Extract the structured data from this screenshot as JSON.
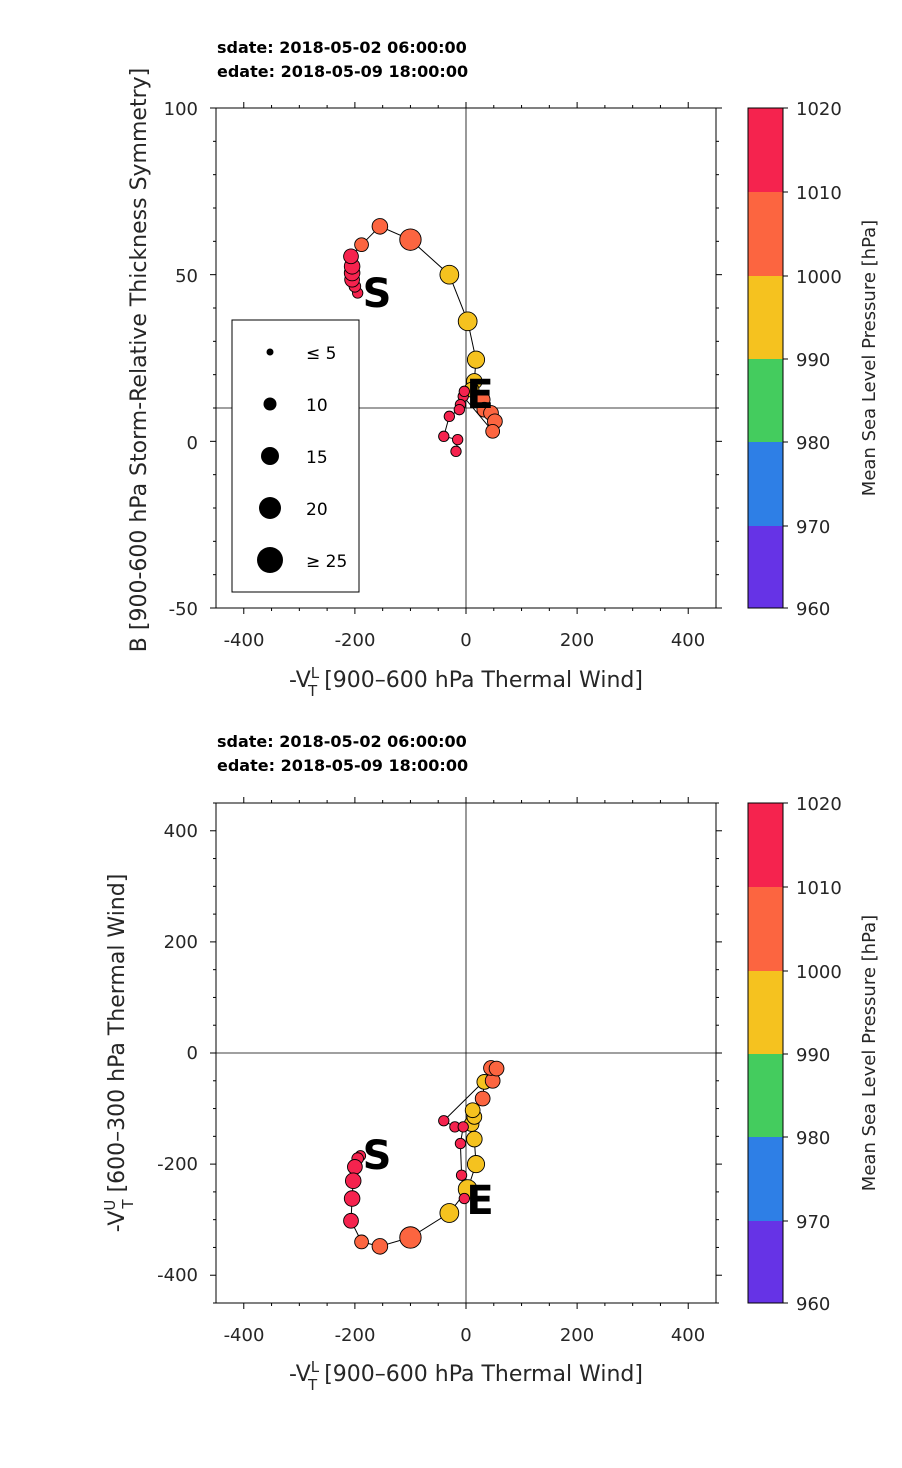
{
  "charts": [
    {
      "sdate": "sdate: 2018-05-02 06:00:00",
      "edate": "edate: 2018-05-09 18:00:00",
      "xlabel": {
        "main": "-V",
        "sup": "L",
        "sub": "T",
        "rest": " [900–600 hPa Thermal Wind]"
      },
      "ylabel": {
        "text": "B [900-600 hPa Storm-Relative Thickness Symmetry]"
      },
      "xticks": [
        "-400",
        "-200",
        "0",
        "200",
        "400"
      ],
      "yticks": [
        "100",
        "50",
        "0",
        "-50"
      ],
      "start_marker": "S",
      "end_marker": "E",
      "colorbar": {
        "label": "Mean Sea Level Pressure [hPa]",
        "ticks": [
          "1020",
          "1010",
          "1000",
          "990",
          "980",
          "970",
          "960"
        ]
      },
      "legend": {
        "entries": [
          "≤ 5",
          "10",
          "15",
          "20",
          "≥ 25"
        ]
      }
    },
    {
      "sdate": "sdate: 2018-05-02 06:00:00",
      "edate": "edate: 2018-05-09 18:00:00",
      "xlabel": {
        "main": "-V",
        "sup": "L",
        "sub": "T",
        "rest": " [900–600 hPa Thermal Wind]"
      },
      "ylabel": {
        "main": "-V",
        "sup": "U",
        "sub": "T",
        "rest": " [600–300 hPa Thermal Wind]"
      },
      "xticks": [
        "-400",
        "-200",
        "0",
        "200",
        "400"
      ],
      "yticks": [
        "400",
        "200",
        "0",
        "-200",
        "-400"
      ],
      "start_marker": "S",
      "end_marker": "E",
      "colorbar": {
        "label": "Mean Sea Level Pressure [hPa]",
        "ticks": [
          "1020",
          "1010",
          "1000",
          "990",
          "980",
          "970",
          "960"
        ]
      }
    }
  ],
  "chart_data": [
    {
      "type": "scatter",
      "title": "sdate: 2018-05-02 06:00:00 / edate: 2018-05-09 18:00:00",
      "xlabel": "-V_T^L [900–600 hPa Thermal Wind]",
      "ylabel": "B [900-600 hPa Storm-Relative Thickness Symmetry]",
      "xlim": [
        -450,
        450
      ],
      "ylim": [
        -50,
        100
      ],
      "grid": false,
      "reference_lines": {
        "x": 0,
        "y": 10
      },
      "legend_position": "left",
      "legend_sizes": [
        5,
        10,
        15,
        20,
        25
      ],
      "color_levels": [
        960,
        970,
        980,
        990,
        1000,
        1010,
        1020
      ],
      "colors": [
        "#6633e6",
        "#2e7fe6",
        "#44cc5e",
        "#f5c21f",
        "#fc6540",
        "#f5234e"
      ],
      "points": [
        {
          "x": -195,
          "y": 44.5,
          "size": 4,
          "mslp": 1012
        },
        {
          "x": -200,
          "y": 46.5,
          "size": 5,
          "mslp": 1012
        },
        {
          "x": -205,
          "y": 48.5,
          "size": 8,
          "mslp": 1012
        },
        {
          "x": -205,
          "y": 50.5,
          "size": 9,
          "mslp": 1012
        },
        {
          "x": -205,
          "y": 52.5,
          "size": 9,
          "mslp": 1012
        },
        {
          "x": -207,
          "y": 55.5,
          "size": 8,
          "mslp": 1011
        },
        {
          "x": -188,
          "y": 59,
          "size": 7,
          "mslp": 1006
        },
        {
          "x": -155,
          "y": 64.5,
          "size": 9,
          "mslp": 1004
        },
        {
          "x": -100,
          "y": 60.5,
          "size": 17,
          "mslp": 1002
        },
        {
          "x": -30,
          "y": 50,
          "size": 13,
          "mslp": 996
        },
        {
          "x": 3,
          "y": 36,
          "size": 13,
          "mslp": 994
        },
        {
          "x": 18,
          "y": 24.5,
          "size": 11,
          "mslp": 994
        },
        {
          "x": 15,
          "y": 18,
          "size": 9,
          "mslp": 996
        },
        {
          "x": 10,
          "y": 15.5,
          "size": 8,
          "mslp": 998
        },
        {
          "x": 30,
          "y": 12.5,
          "size": 8,
          "mslp": 1003
        },
        {
          "x": 33,
          "y": 9.5,
          "size": 8,
          "mslp": 1004
        },
        {
          "x": 45,
          "y": 8.5,
          "size": 8,
          "mslp": 1004
        },
        {
          "x": 52,
          "y": 6,
          "size": 8,
          "mslp": 1004
        },
        {
          "x": 48,
          "y": 3,
          "size": 7,
          "mslp": 1005
        },
        {
          "x": -5,
          "y": 13.5,
          "size": 4,
          "mslp": 1012
        },
        {
          "x": -3,
          "y": 15,
          "size": 4,
          "mslp": 1012
        },
        {
          "x": -10,
          "y": 11,
          "size": 4,
          "mslp": 1012
        },
        {
          "x": -12,
          "y": 9.5,
          "size": 4,
          "mslp": 1012
        },
        {
          "x": -30,
          "y": 7.5,
          "size": 4,
          "mslp": 1012
        },
        {
          "x": -40,
          "y": 1.5,
          "size": 4,
          "mslp": 1012
        },
        {
          "x": -15,
          "y": 0.5,
          "size": 4,
          "mslp": 1012
        },
        {
          "x": -18,
          "y": -3,
          "size": 4,
          "mslp": 1012
        }
      ]
    },
    {
      "type": "scatter",
      "title": "sdate: 2018-05-02 06:00:00 / edate: 2018-05-09 18:00:00",
      "xlabel": "-V_T^L [900–600 hPa Thermal Wind]",
      "ylabel": "-V_T^U [600–300 hPa Thermal Wind]",
      "xlim": [
        -450,
        450
      ],
      "ylim": [
        -450,
        450
      ],
      "grid": false,
      "reference_lines": {
        "x": 0,
        "y": 0
      },
      "color_levels": [
        960,
        970,
        980,
        990,
        1000,
        1010,
        1020
      ],
      "colors": [
        "#6633e6",
        "#2e7fe6",
        "#44cc5e",
        "#f5c21f",
        "#fc6540",
        "#f5234e"
      ],
      "points": [
        {
          "x": -190,
          "y": -185,
          "size": 4,
          "mslp": 1012
        },
        {
          "x": -195,
          "y": -190,
          "size": 5,
          "mslp": 1012
        },
        {
          "x": -200,
          "y": -205,
          "size": 8,
          "mslp": 1012
        },
        {
          "x": -203,
          "y": -230,
          "size": 9,
          "mslp": 1012
        },
        {
          "x": -205,
          "y": -262,
          "size": 9,
          "mslp": 1012
        },
        {
          "x": -207,
          "y": -302,
          "size": 8,
          "mslp": 1011
        },
        {
          "x": -188,
          "y": -340,
          "size": 7,
          "mslp": 1006
        },
        {
          "x": -155,
          "y": -348,
          "size": 9,
          "mslp": 1004
        },
        {
          "x": -100,
          "y": -332,
          "size": 17,
          "mslp": 1002
        },
        {
          "x": -30,
          "y": -288,
          "size": 13,
          "mslp": 996
        },
        {
          "x": 3,
          "y": -245,
          "size": 13,
          "mslp": 994
        },
        {
          "x": 18,
          "y": -200,
          "size": 11,
          "mslp": 994
        },
        {
          "x": 15,
          "y": -155,
          "size": 9,
          "mslp": 996
        },
        {
          "x": 10,
          "y": -128,
          "size": 8,
          "mslp": 998
        },
        {
          "x": 15,
          "y": -115,
          "size": 8,
          "mslp": 998
        },
        {
          "x": 12,
          "y": -103,
          "size": 8,
          "mslp": 998
        },
        {
          "x": 30,
          "y": -82,
          "size": 8,
          "mslp": 1003
        },
        {
          "x": 33,
          "y": -52,
          "size": 8,
          "mslp": 996
        },
        {
          "x": 48,
          "y": -50,
          "size": 8,
          "mslp": 1004
        },
        {
          "x": 45,
          "y": -27,
          "size": 8,
          "mslp": 1004
        },
        {
          "x": 55,
          "y": -28,
          "size": 8,
          "mslp": 1004
        },
        {
          "x": -40,
          "y": -122,
          "size": 4,
          "mslp": 1012
        },
        {
          "x": -20,
          "y": -133,
          "size": 4,
          "mslp": 1012
        },
        {
          "x": -5,
          "y": -133,
          "size": 4,
          "mslp": 1012
        },
        {
          "x": -10,
          "y": -163,
          "size": 4,
          "mslp": 1012
        },
        {
          "x": -8,
          "y": -220,
          "size": 4,
          "mslp": 1012
        },
        {
          "x": -3,
          "y": -262,
          "size": 4,
          "mslp": 1012
        }
      ]
    }
  ]
}
